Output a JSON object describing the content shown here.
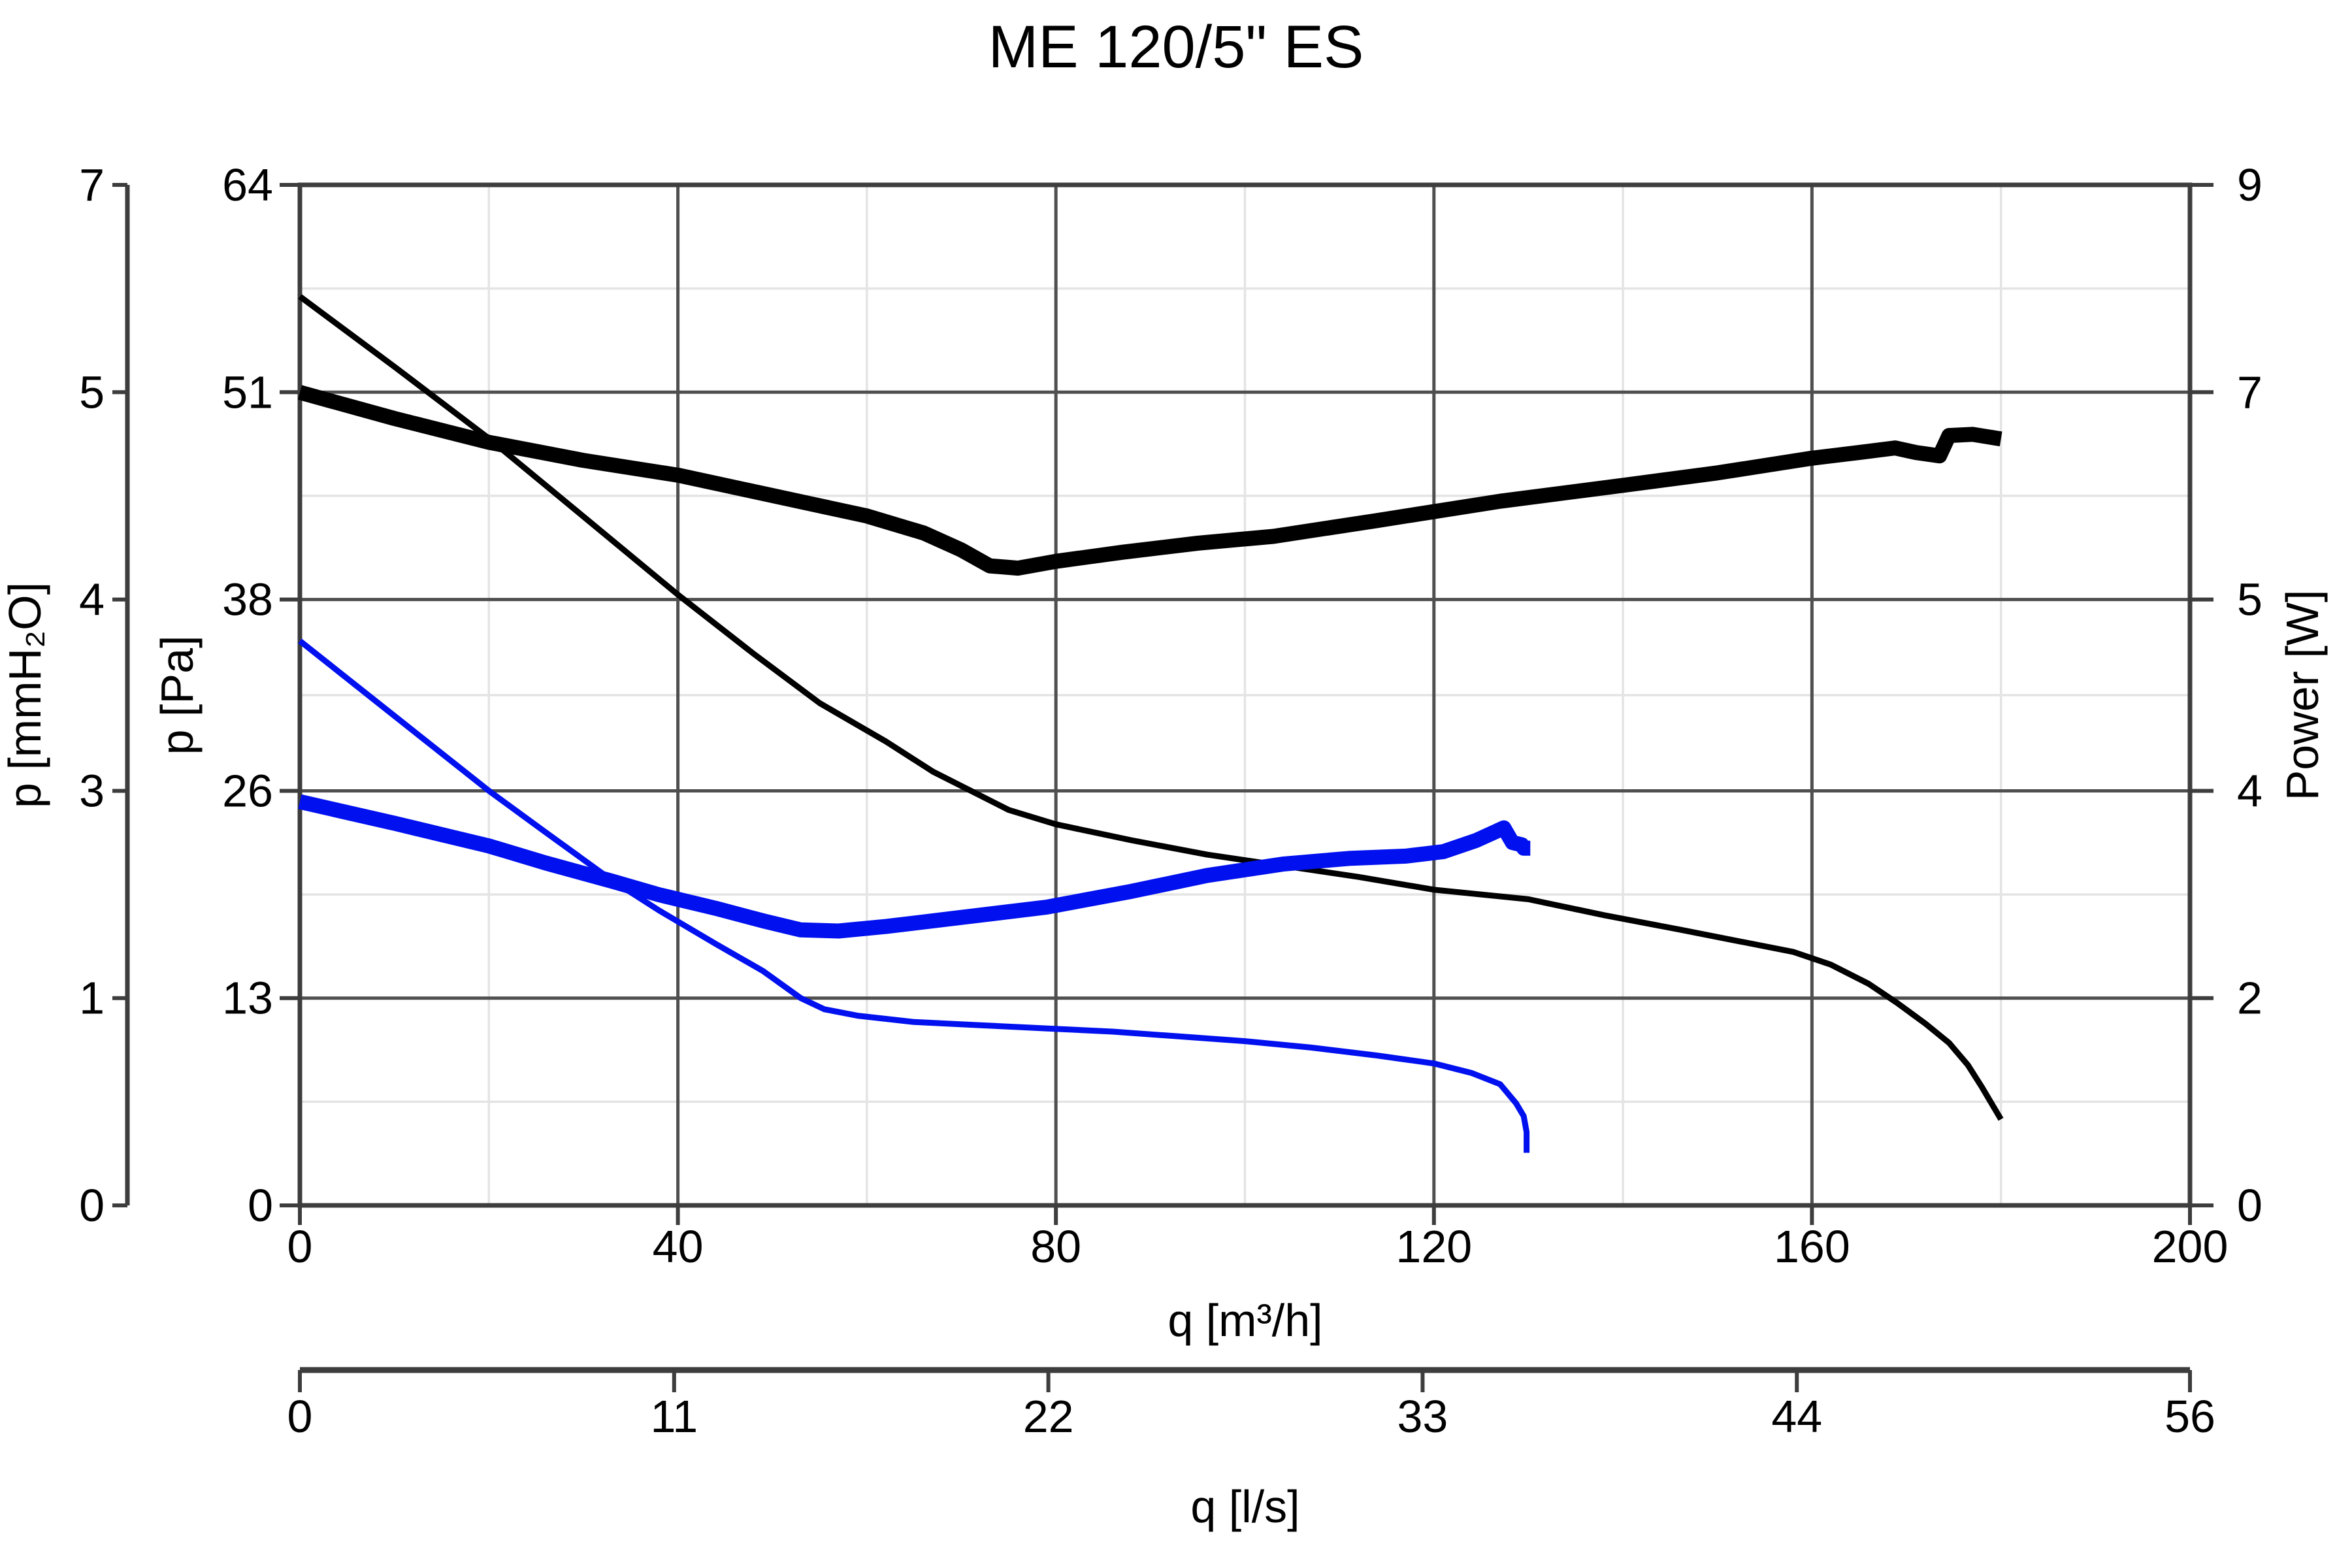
{
  "title": "ME 120/5\" ES",
  "colors": {
    "black": "#000000",
    "blue": "#0010ee",
    "axis": "#3d3d3d",
    "grid_major": "#4f4f4f",
    "grid_minor": "#e4e4e4",
    "background": "#ffffff",
    "text": "#000000"
  },
  "chart_data": {
    "type": "line",
    "title": "ME 120/5\" ES",
    "grid": true,
    "legend": false,
    "x_axis_m3h": {
      "label": "q [m³/h]",
      "min": 0,
      "max": 200,
      "major_ticks": [
        0,
        40,
        80,
        120,
        160,
        200
      ],
      "minor_ticks": [
        20,
        60,
        100,
        140,
        180
      ]
    },
    "x_axis_ls": {
      "label": "q [l/s]",
      "tick_labels": [
        "0",
        "11",
        "22",
        "33",
        "44",
        "56"
      ],
      "tick_positions_m3h": [
        0,
        39.6,
        79.2,
        118.8,
        158.4,
        200
      ]
    },
    "y_axis_pa": {
      "label": "p [Pa]",
      "min": 0,
      "max": 64,
      "major_ticks": [
        0,
        13,
        26,
        38,
        51,
        64
      ],
      "minor_ticks": [
        6.5,
        19.5,
        32,
        44.5,
        57.5
      ]
    },
    "y_axis_mmh2o": {
      "label": "p [mmH₂O]",
      "tick_labels": [
        "0",
        "1",
        "3",
        "4",
        "5",
        "7"
      ]
    },
    "y_axis_power": {
      "label": "Power [W]",
      "min": 0,
      "max": 9,
      "tick_labels": [
        "0",
        "2",
        "4",
        "5",
        "7",
        "9"
      ]
    },
    "series": [
      {
        "id": "pressure-high-speed",
        "desc": "Pressure curve, high speed",
        "unit": "Pa",
        "color_key": "black",
        "thick": false,
        "points": [
          [
            0,
            57
          ],
          [
            10,
            52.6
          ],
          [
            20,
            48.1
          ],
          [
            30,
            43.2
          ],
          [
            40,
            38.3
          ],
          [
            48,
            34.6
          ],
          [
            55,
            31.5
          ],
          [
            62,
            29.1
          ],
          [
            67,
            27.2
          ],
          [
            71,
            26
          ],
          [
            75,
            24.8
          ],
          [
            80,
            23.9
          ],
          [
            88,
            22.9
          ],
          [
            96,
            22
          ],
          [
            104,
            21.3
          ],
          [
            112,
            20.6
          ],
          [
            120,
            19.8
          ],
          [
            130,
            19.2
          ],
          [
            138,
            18.2
          ],
          [
            146,
            17.3
          ],
          [
            152,
            16.6
          ],
          [
            158,
            15.9
          ],
          [
            162,
            15.1
          ],
          [
            166,
            13.9
          ],
          [
            169,
            12.7
          ],
          [
            172,
            11.4
          ],
          [
            174.5,
            10.2
          ],
          [
            176.5,
            8.8
          ],
          [
            178,
            7.4
          ],
          [
            179.2,
            6.2
          ],
          [
            180,
            5.4
          ]
        ]
      },
      {
        "id": "power-high-speed",
        "desc": "Power curve, high speed",
        "unit": "W",
        "color_key": "black",
        "thick": true,
        "points": [
          [
            0,
            7.17
          ],
          [
            10,
            6.94
          ],
          [
            20,
            6.73
          ],
          [
            30,
            6.57
          ],
          [
            40,
            6.44
          ],
          [
            50,
            6.26
          ],
          [
            60,
            6.08
          ],
          [
            66,
            5.93
          ],
          [
            70,
            5.78
          ],
          [
            73,
            5.64
          ],
          [
            76,
            5.62
          ],
          [
            80,
            5.68
          ],
          [
            87,
            5.76
          ],
          [
            95,
            5.84
          ],
          [
            103,
            5.9
          ],
          [
            114,
            6.04
          ],
          [
            127,
            6.21
          ],
          [
            140,
            6.35
          ],
          [
            150,
            6.46
          ],
          [
            160,
            6.59
          ],
          [
            165,
            6.64
          ],
          [
            168.8,
            6.68
          ],
          [
            171,
            6.64
          ],
          [
            173.5,
            6.61
          ],
          [
            174.5,
            6.79
          ],
          [
            177,
            6.8
          ],
          [
            178.5,
            6.78
          ],
          [
            180,
            6.76
          ]
        ]
      },
      {
        "id": "pressure-low-speed",
        "desc": "Pressure curve, low speed",
        "unit": "Pa",
        "color_key": "blue",
        "thick": false,
        "points": [
          [
            0,
            35.4
          ],
          [
            10,
            30.7
          ],
          [
            20,
            26
          ],
          [
            26,
            23.4
          ],
          [
            33,
            20.4
          ],
          [
            38,
            18.5
          ],
          [
            44,
            16.4
          ],
          [
            49,
            14.7
          ],
          [
            53,
            13
          ],
          [
            55.5,
            12.3
          ],
          [
            59,
            11.9
          ],
          [
            65,
            11.5
          ],
          [
            72,
            11.3
          ],
          [
            79,
            11.1
          ],
          [
            86,
            10.9
          ],
          [
            93,
            10.6
          ],
          [
            100,
            10.3
          ],
          [
            107,
            9.9
          ],
          [
            114,
            9.4
          ],
          [
            120,
            8.9
          ],
          [
            124,
            8.3
          ],
          [
            127,
            7.6
          ],
          [
            128.7,
            6.4
          ],
          [
            129.5,
            5.6
          ],
          [
            129.8,
            4.6
          ],
          [
            129.8,
            3.3
          ]
        ]
      },
      {
        "id": "power-low-speed",
        "desc": "Power curve, low speed",
        "unit": "W",
        "color_key": "blue",
        "thick": true,
        "points": [
          [
            0,
            3.56
          ],
          [
            10,
            3.37
          ],
          [
            20,
            3.17
          ],
          [
            26,
            3.02
          ],
          [
            33,
            2.86
          ],
          [
            38,
            2.74
          ],
          [
            44,
            2.62
          ],
          [
            49,
            2.51
          ],
          [
            53,
            2.43
          ],
          [
            57,
            2.42
          ],
          [
            62,
            2.46
          ],
          [
            70,
            2.54
          ],
          [
            79,
            2.63
          ],
          [
            88,
            2.77
          ],
          [
            96,
            2.91
          ],
          [
            104,
            3.01
          ],
          [
            111,
            3.06
          ],
          [
            117,
            3.08
          ],
          [
            121,
            3.12
          ],
          [
            124.5,
            3.22
          ],
          [
            127.4,
            3.33
          ],
          [
            128.3,
            3.2
          ],
          [
            129.3,
            3.18
          ],
          [
            129.5,
            3.15
          ],
          [
            130.2,
            3.15
          ]
        ]
      }
    ]
  }
}
